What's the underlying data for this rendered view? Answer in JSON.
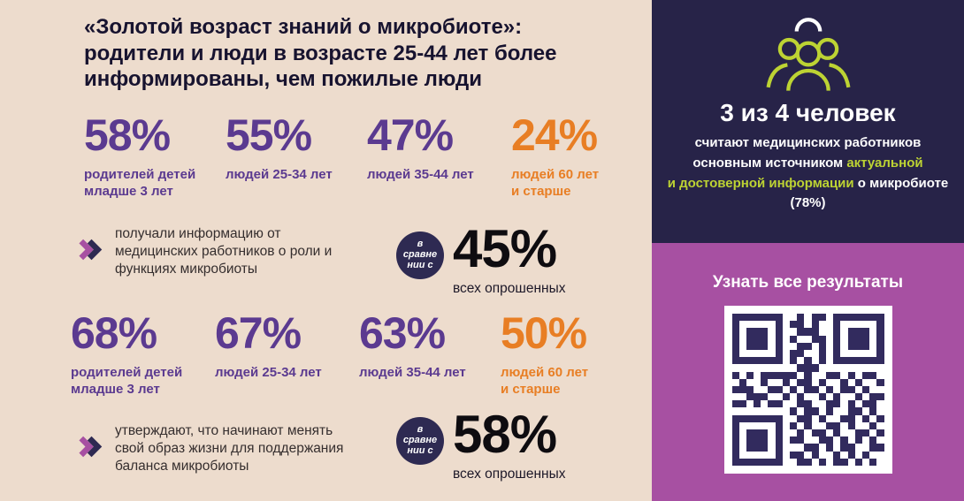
{
  "colors": {
    "beige": "#EDDCCD",
    "navy": "#272348",
    "pink": "#A750A2",
    "purple": "#5B3A90",
    "orange": "#E87E24",
    "lime": "#BDD333",
    "badge": "#2E2A52",
    "qr": "#322B5E",
    "ink": "#17132F"
  },
  "left_panel": {
    "title": "«Золотой возраст знаний о микробиоте»:\nродители и люди в возрасте 25-44 лет более\nинформированы, чем пожилые люди",
    "rows": [
      {
        "stats": [
          {
            "value": "58%",
            "label": "родителей детей\nмладше 3 лет",
            "color": "purple"
          },
          {
            "value": "55%",
            "label": "людей 25-34 лет",
            "color": "purple"
          },
          {
            "value": "47%",
            "label": "людей 35-44 лет",
            "color": "purple"
          },
          {
            "value": "24%",
            "label": "людей 60 лет\nи старше",
            "color": "orange"
          }
        ],
        "description": "получали информацию от\nмедицинских работников о роли и\nфункциях микробиоты",
        "comparison": {
          "badge_text": "в\nсравне\nнии с",
          "value": "45%",
          "label": "всех опрошенных"
        }
      },
      {
        "stats": [
          {
            "value": "68%",
            "label": "родителей детей\nмладше 3 лет",
            "color": "purple"
          },
          {
            "value": "67%",
            "label": "людей 25-34 лет",
            "color": "purple"
          },
          {
            "value": "63%",
            "label": "людей 35-44 лет",
            "color": "purple"
          },
          {
            "value": "50%",
            "label": "людей 60 лет\nи старше",
            "color": "orange"
          }
        ],
        "description": "утверждают, что начинают менять\nсвой образ жизни для поддержания\nбаланса микробиоты",
        "comparison": {
          "badge_text": "в\nсравне\nнии с",
          "value": "58%",
          "label": "всех опрошенных"
        }
      }
    ]
  },
  "right_panel": {
    "icon": "people-group-icon",
    "headline": "3 из 4 человек",
    "body": {
      "line1": "считают медицинских работников",
      "line2_white": "основным источником ",
      "line2_lime": "актуальной",
      "line3_lime": "и достоверной информации",
      "line3_white": " о микробиоте",
      "line4": "(78%)"
    },
    "cta": "Узнать все результаты"
  },
  "chart_data": [
    {
      "type": "table",
      "title": "получали информацию от медицинских работников о роли и функциях микробиоты",
      "categories": [
        "родители детей младше 3 лет",
        "люди 25-34 лет",
        "люди 35-44 лет",
        "люди 60 лет и старше",
        "все опрошенные"
      ],
      "values": [
        58,
        55,
        47,
        24,
        45
      ]
    },
    {
      "type": "table",
      "title": "утверждают, что начинают менять свой образ жизни для поддержания баланса микробиоты",
      "categories": [
        "родители детей младше 3 лет",
        "люди 25-34 лет",
        "люди 35-44 лет",
        "люди 60 лет и старше",
        "все опрошенные"
      ],
      "values": [
        68,
        67,
        63,
        50,
        58
      ]
    },
    {
      "type": "table",
      "title": "считают медицинских работников основным источником актуальной и достоверной информации о микробиоте",
      "categories": [
        "все опрошенные"
      ],
      "values": [
        78
      ]
    }
  ],
  "qr": {
    "rows": [
      "111111100101101111111",
      "100000101101001000001",
      "101110100111001011101",
      "101110101001101011101",
      "101110100110101011101",
      "100000101100101000001",
      "111111101010101111111",
      "000000000111000000000",
      "101011111010011010110",
      "010010010110100101001",
      "111001101011010110100",
      "001110010100101001011",
      "110101100110011010110",
      "000000001011010011010",
      "111111100110100110101",
      "100000101010011010010",
      "101110100101101001101",
      "101110101100110101010",
      "101110100011010110011",
      "100000101101001010100",
      "111111100110101101010"
    ]
  }
}
